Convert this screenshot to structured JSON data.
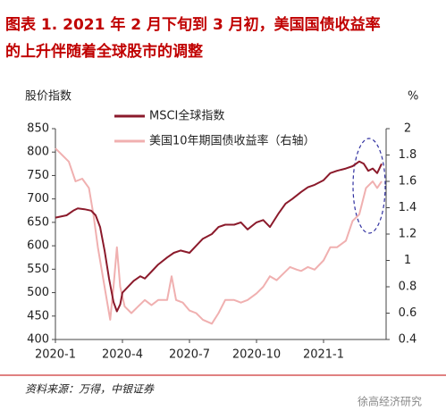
{
  "chart_data": {
    "type": "line",
    "title": [
      "图表 1.  2021 年 2 月下旬到 3 月初，美国国债收益率",
      "的上升伴随着全球股市的调整"
    ],
    "ylabel": "股价指数",
    "y2label": "%",
    "source": "资料来源：万得，中银证券",
    "watermark": "徐高经济研究",
    "xlim": [
      0,
      14.8
    ],
    "xticks": [
      {
        "value": 0,
        "label": "2020-1"
      },
      {
        "value": 3,
        "label": "2020-4"
      },
      {
        "value": 6,
        "label": "2020-7"
      },
      {
        "value": 9,
        "label": "2020-10"
      },
      {
        "value": 12,
        "label": "2021-1"
      }
    ],
    "ylim": [
      400,
      850
    ],
    "yticks": [
      400,
      450,
      500,
      550,
      600,
      650,
      700,
      750,
      800,
      850
    ],
    "y2lim": [
      0.4,
      2
    ],
    "y2ticks": [
      0.4,
      0.6,
      0.8,
      1,
      1.2,
      1.4,
      1.6,
      1.8,
      2
    ],
    "series": [
      {
        "name": "MSCI全球指数",
        "color": "#8b1a2b",
        "x": [
          0,
          0.5,
          0.8,
          1.0,
          1.3,
          1.6,
          1.8,
          2.0,
          2.2,
          2.4,
          2.6,
          2.75,
          2.9,
          3.0,
          3.2,
          3.5,
          3.8,
          4.0,
          4.3,
          4.6,
          5.0,
          5.3,
          5.6,
          6.0,
          6.3,
          6.6,
          7.0,
          7.3,
          7.6,
          8.0,
          8.3,
          8.6,
          9.0,
          9.3,
          9.6,
          10.0,
          10.3,
          10.6,
          11.0,
          11.3,
          11.6,
          12.0,
          12.3,
          12.6,
          13.0,
          13.3,
          13.6,
          13.8,
          14.0,
          14.2,
          14.4,
          14.6
        ],
        "values": [
          660,
          665,
          675,
          680,
          678,
          675,
          665,
          640,
          590,
          530,
          480,
          460,
          475,
          500,
          510,
          525,
          535,
          530,
          545,
          560,
          575,
          585,
          590,
          585,
          600,
          615,
          625,
          640,
          645,
          645,
          650,
          635,
          650,
          655,
          640,
          670,
          690,
          700,
          715,
          725,
          730,
          740,
          755,
          760,
          765,
          770,
          780,
          775,
          760,
          765,
          755,
          775
        ]
      },
      {
        "name": "美国10年期国债收益率（右轴）",
        "color": "#f0b0b0",
        "axis": "y2",
        "x": [
          0,
          0.3,
          0.6,
          0.9,
          1.2,
          1.5,
          1.7,
          1.9,
          2.1,
          2.3,
          2.45,
          2.6,
          2.75,
          2.9,
          3.1,
          3.4,
          3.7,
          4.0,
          4.3,
          4.6,
          5.0,
          5.2,
          5.4,
          5.7,
          6.0,
          6.3,
          6.6,
          7.0,
          7.3,
          7.6,
          8.0,
          8.3,
          8.6,
          9.0,
          9.3,
          9.6,
          9.9,
          10.2,
          10.5,
          10.8,
          11.0,
          11.3,
          11.6,
          12.0,
          12.3,
          12.6,
          13.0,
          13.3,
          13.6,
          13.9,
          14.2,
          14.4,
          14.6
        ],
        "values": [
          1.85,
          1.8,
          1.75,
          1.6,
          1.62,
          1.55,
          1.35,
          1.1,
          0.9,
          0.7,
          0.55,
          0.8,
          1.1,
          0.8,
          0.65,
          0.6,
          0.65,
          0.7,
          0.66,
          0.7,
          0.7,
          0.88,
          0.7,
          0.68,
          0.62,
          0.6,
          0.55,
          0.52,
          0.6,
          0.7,
          0.7,
          0.68,
          0.7,
          0.75,
          0.8,
          0.88,
          0.85,
          0.9,
          0.95,
          0.93,
          0.92,
          0.95,
          0.93,
          1.0,
          1.1,
          1.1,
          1.15,
          1.3,
          1.35,
          1.55,
          1.6,
          1.55,
          1.6
        ]
      }
    ]
  }
}
